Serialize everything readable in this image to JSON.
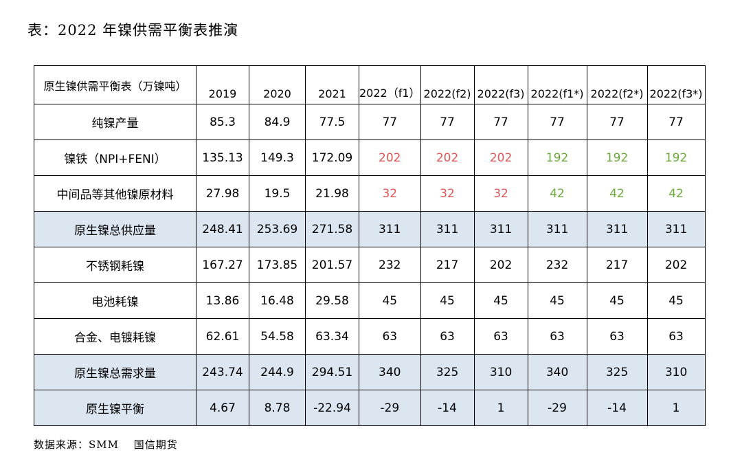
{
  "title": "表：2022 年镍供需平衡表推演",
  "table": {
    "header": [
      "原生镍供需平衡表（万镍吨）",
      "2019",
      "2020",
      "2021",
      "2022（f1）",
      "2022(f2)",
      "2022(f3)",
      "2022(f1*)",
      "2022(f2*)",
      "2022(f3*)"
    ],
    "rows": [
      {
        "label": "纯镍产量",
        "values": [
          "85.3",
          "84.9",
          "77.5",
          "77",
          "77",
          "77",
          "77",
          "77",
          "77"
        ]
      },
      {
        "label": "镍铁（NPI+FENI）",
        "values": [
          "135.13",
          "149.3",
          "172.09",
          "202",
          "202",
          "202",
          "192",
          "192",
          "192"
        ]
      },
      {
        "label": "中间品等其他镍原材料",
        "values": [
          "27.98",
          "19.5",
          "21.98",
          "32",
          "32",
          "32",
          "42",
          "42",
          "42"
        ]
      },
      {
        "label": "原生镍总供应量",
        "values": [
          "248.41",
          "253.69",
          "271.58",
          "311",
          "311",
          "311",
          "311",
          "311",
          "311"
        ]
      },
      {
        "label": "不锈钢耗镍",
        "values": [
          "167.27",
          "173.85",
          "201.57",
          "232",
          "217",
          "202",
          "232",
          "217",
          "202"
        ]
      },
      {
        "label": "电池耗镍",
        "values": [
          "13.86",
          "16.48",
          "29.58",
          "45",
          "45",
          "45",
          "45",
          "45",
          "45"
        ]
      },
      {
        "label": "合金、电镀耗镍",
        "values": [
          "62.61",
          "54.58",
          "63.34",
          "63",
          "63",
          "63",
          "63",
          "63",
          "63"
        ]
      },
      {
        "label": "原生镍总需求量",
        "values": [
          "243.74",
          "244.9",
          "294.51",
          "340",
          "325",
          "310",
          "340",
          "325",
          "310"
        ]
      },
      {
        "label": "原生镍平衡",
        "values": [
          "4.67",
          "8.78",
          "-22.94",
          "-29",
          "-14",
          "1",
          "-29",
          "-14",
          "1"
        ]
      }
    ]
  },
  "colors": {
    "red": "#e05555",
    "green": "#6aaa3a",
    "shade": "#dce6f1"
  },
  "source": "数据来源：SMM　 国信期货"
}
